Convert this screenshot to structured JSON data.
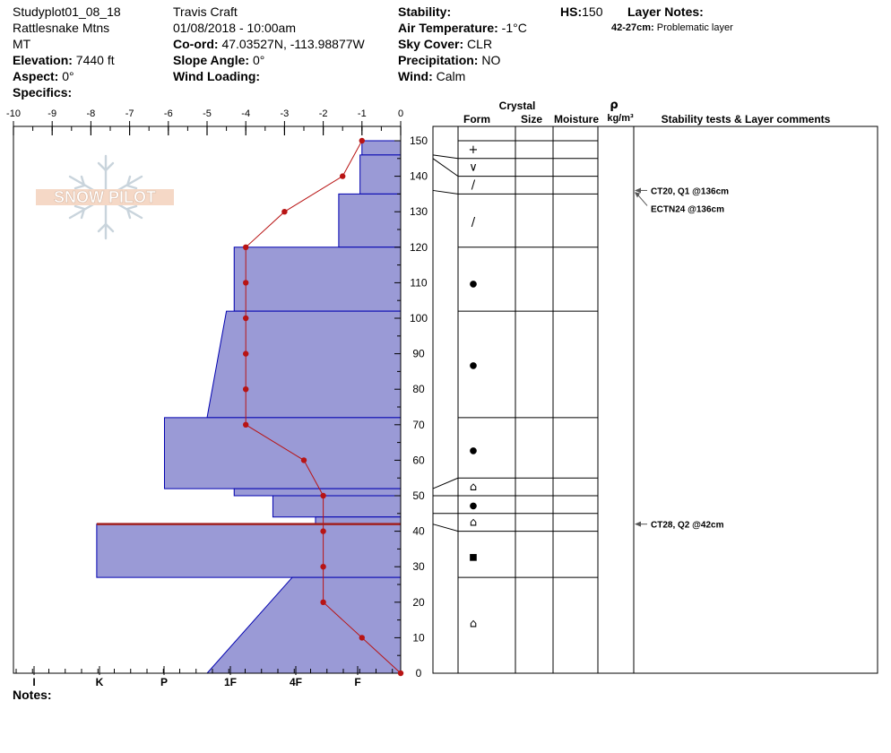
{
  "header": {
    "plot_id": "Studyplot01_08_18",
    "location": "Rattlesnake Mtns",
    "state": "MT",
    "elevation_label": "Elevation:",
    "elevation_value": "7440 ft",
    "aspect_label": "Aspect:",
    "aspect_value": "0°",
    "specifics_label": "Specifics:",
    "observer": "Travis  Craft",
    "datetime": "01/08/2018 - 10:00am",
    "coord_label": "Co-ord:",
    "coord_value": "47.03527N, -113.98877W",
    "slope_label": "Slope Angle:",
    "slope_value": "0°",
    "wind_loading_label": "Wind Loading:",
    "stability_label": "Stability:",
    "air_temp_label": "Air Temperature:",
    "air_temp_value": "-1°C",
    "sky_label": "Sky Cover:",
    "sky_value": "CLR",
    "precip_label": "Precipitation:",
    "precip_value": "NO",
    "wind_label": "Wind:",
    "wind_value": "Calm",
    "hs_label": "HS:",
    "hs_value": "150",
    "layer_notes_label": "Layer Notes:",
    "layer_note_range": "42-27cm:",
    "layer_note_text": "Problematic layer"
  },
  "footer": {
    "notes_label": "Notes:"
  },
  "logo_text": "SNOW PILOT",
  "colors": {
    "hardness_fill": "#9a9ad6",
    "hardness_edge": "#0000b0",
    "temp_line": "#b81414",
    "weak_layer": "#a02020"
  },
  "chart_data": {
    "type": "snow-profile",
    "temp_axis": {
      "ticks": [
        "-10",
        "-9",
        "-8",
        "-7",
        "-6",
        "-5",
        "-4",
        "-3",
        "-2",
        "-1",
        "0"
      ],
      "range": [
        -10,
        0
      ]
    },
    "hardness_axis": {
      "ticks": [
        "I",
        "K",
        "P",
        "1F",
        "4F",
        "F"
      ]
    },
    "height_axis": {
      "range": [
        0,
        150
      ],
      "ticks": [
        "0",
        "10",
        "20",
        "30",
        "40",
        "50",
        "60",
        "70",
        "80",
        "90",
        "100",
        "110",
        "120",
        "130",
        "140",
        "150"
      ]
    },
    "columns": {
      "crystal_label": "Crystal",
      "form_label": "Form",
      "size_label": "Size",
      "moisture_label": "Moisture",
      "rho_label": "ρ",
      "density_unit": "kg/m³",
      "stability_label": "Stability tests & Layer comments"
    },
    "temperature_profile": [
      {
        "h": 150,
        "t": -1.0
      },
      {
        "h": 140,
        "t": -1.5
      },
      {
        "h": 130,
        "t": -3.0
      },
      {
        "h": 120,
        "t": -4.0
      },
      {
        "h": 110,
        "t": -4.0
      },
      {
        "h": 100,
        "t": -4.0
      },
      {
        "h": 90,
        "t": -4.0
      },
      {
        "h": 80,
        "t": -4.0
      },
      {
        "h": 70,
        "t": -4.0
      },
      {
        "h": 60,
        "t": -2.5
      },
      {
        "h": 50,
        "t": -2.0
      },
      {
        "h": 40,
        "t": -2.0
      },
      {
        "h": 30,
        "t": -2.0
      },
      {
        "h": 20,
        "t": -2.0
      },
      {
        "h": 10,
        "t": -1.0
      },
      {
        "h": 0,
        "t": 0.0
      }
    ],
    "hardness_layers": [
      {
        "top": 150,
        "bottom": 146,
        "hardness": -1.0
      },
      {
        "top": 146,
        "bottom": 135,
        "hardness": -1.05
      },
      {
        "top": 135,
        "bottom": 120,
        "hardness": -1.6
      },
      {
        "top": 120,
        "bottom": 102,
        "hardness": -4.3
      },
      {
        "top": 102,
        "bottom": 72,
        "hardness_top": -4.5,
        "hardness_bottom": -5.0
      },
      {
        "top": 72,
        "bottom": 52,
        "hardness": -6.1
      },
      {
        "top": 52,
        "bottom": 50,
        "hardness": -4.3
      },
      {
        "top": 50,
        "bottom": 44,
        "hardness": -3.3
      },
      {
        "top": 44,
        "bottom": 42,
        "hardness": -2.2
      },
      {
        "top": 42,
        "bottom": 27,
        "hardness": -7.85
      },
      {
        "top": 27,
        "bottom": 0,
        "hardness_top": -2.8,
        "hardness_bottom": -5.0
      }
    ],
    "weak_layer_height": 42,
    "layer_boundaries": [
      150,
      145,
      140,
      135,
      120,
      102,
      72,
      55,
      50,
      45,
      40,
      27
    ],
    "layer_connectors": [
      {
        "left": 146,
        "right": 145
      },
      {
        "left": 145,
        "right": 140
      },
      {
        "left": 136,
        "right": 135
      },
      {
        "left": 52,
        "right": 55
      },
      {
        "left": 50,
        "right": 50
      },
      {
        "left": 45,
        "right": 45
      },
      {
        "left": 42,
        "right": 40
      }
    ],
    "grain_symbols": [
      {
        "h": 147.5,
        "symbol": "+"
      },
      {
        "h": 142.5,
        "symbol": "∨"
      },
      {
        "h": 137.5,
        "symbol": "/"
      },
      {
        "h": 127,
        "symbol": "/"
      },
      {
        "h": 110,
        "symbol": "●"
      },
      {
        "h": 87,
        "symbol": "●"
      },
      {
        "h": 63,
        "symbol": "●"
      },
      {
        "h": 52.5,
        "symbol": "⌂"
      },
      {
        "h": 47.5,
        "symbol": "●"
      },
      {
        "h": 42.5,
        "symbol": "⌂"
      },
      {
        "h": 33,
        "symbol": "■"
      },
      {
        "h": 14,
        "symbol": "⌂"
      }
    ],
    "stability_tests": [
      {
        "h": 136,
        "text": "CT20, Q1 @136cm",
        "arrow": true
      },
      {
        "h": 136,
        "text": "ECTN24 @136cm",
        "arrow": false
      },
      {
        "h": 42,
        "text": "CT28, Q2 @42cm",
        "arrow": true
      }
    ]
  }
}
